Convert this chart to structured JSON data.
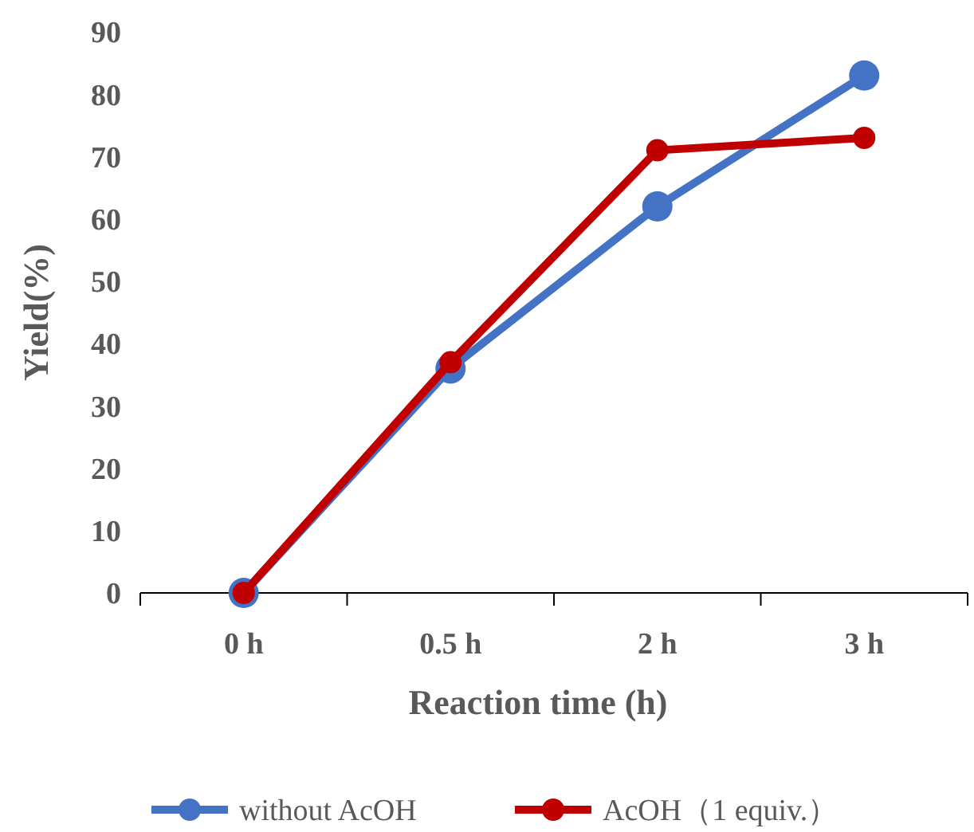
{
  "chart_data": {
    "type": "line",
    "xlabel": "Reaction time (h)",
    "ylabel": "Yield(%)",
    "categories": [
      "0 h",
      "0.5 h",
      "2 h",
      "3 h"
    ],
    "series": [
      {
        "name": "without AcOH",
        "color": "#4472c4",
        "values": [
          0,
          36,
          62,
          83
        ]
      },
      {
        "name": "AcOH（1 equiv.）",
        "color": "#c00000",
        "values": [
          0,
          37,
          71,
          73
        ]
      }
    ],
    "ylim": [
      0,
      90
    ],
    "yticks": [
      0,
      10,
      20,
      30,
      40,
      50,
      60,
      70,
      80,
      90
    ],
    "grid": false,
    "legend": "bottom",
    "marker": "circle",
    "line_style": "solid"
  }
}
